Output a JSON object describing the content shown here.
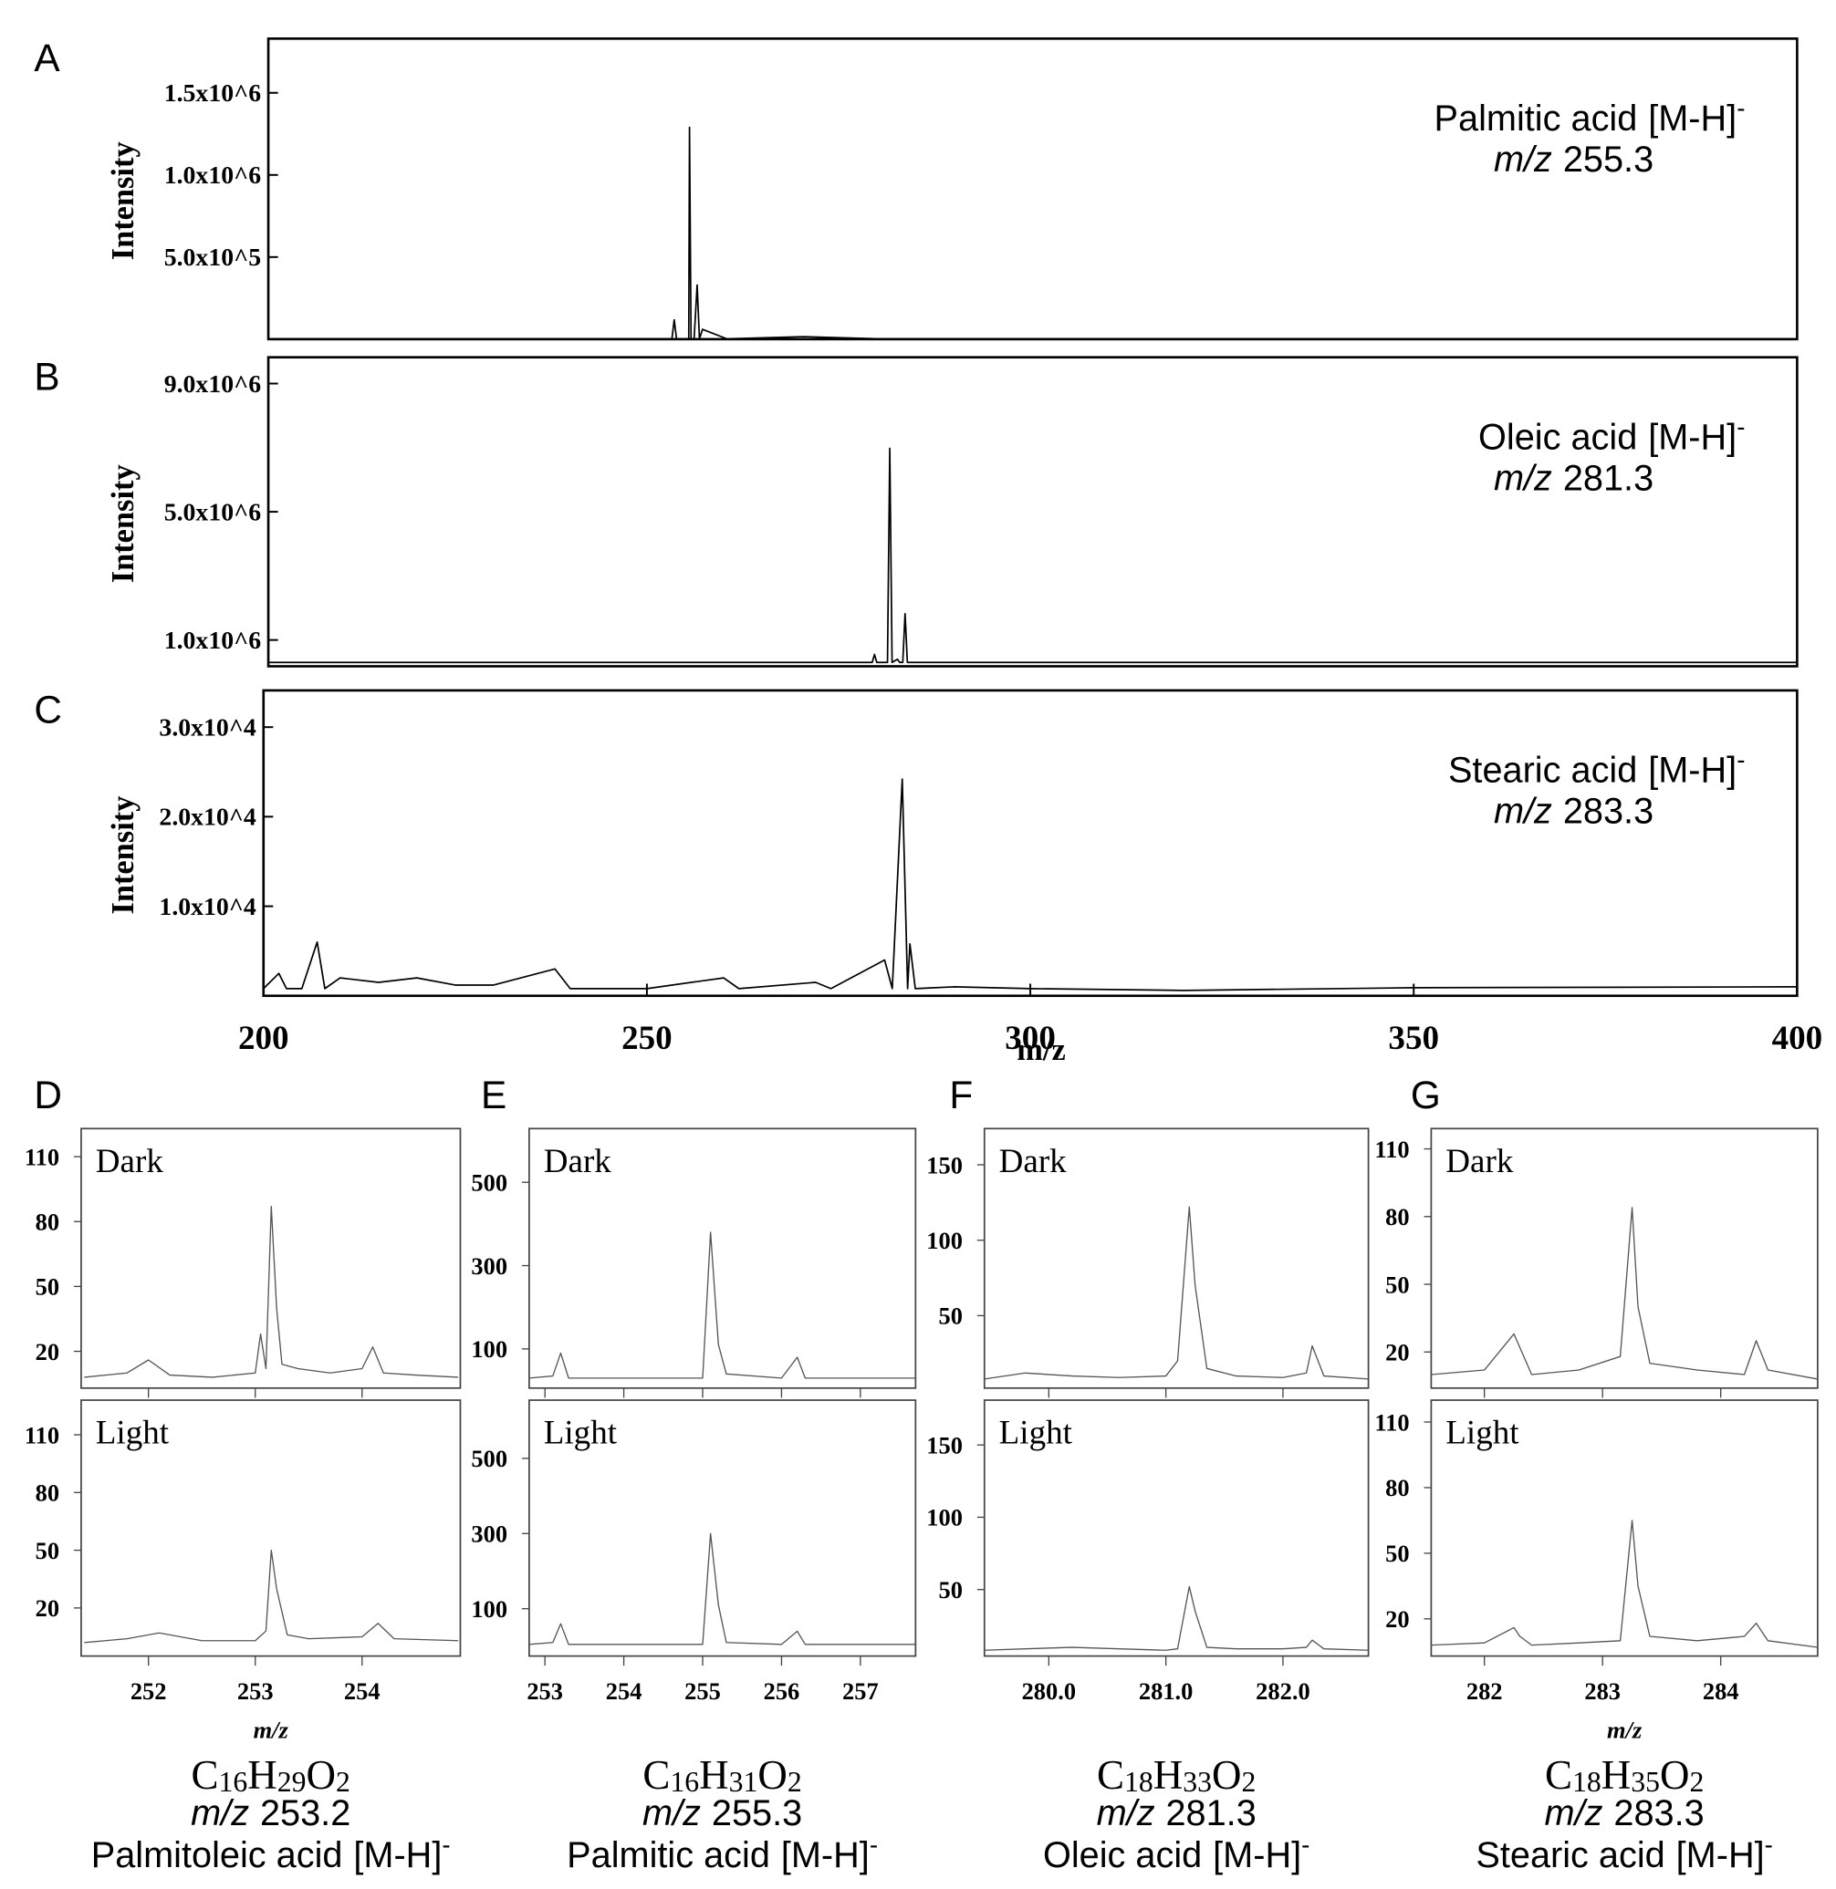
{
  "chart_data": [
    {
      "type": "line",
      "label": "A",
      "ylabel": "Intensity",
      "compound": "Palmitic acid",
      "ion": "[M-H]",
      "charge": "-",
      "mz_prefix": "m/z",
      "mz": "255.3",
      "xlim": [
        200,
        400
      ],
      "ylim": [
        0,
        1830000
      ],
      "yticks": [
        {
          "value": 500000,
          "label": "5.0x10^5"
        },
        {
          "value": 1000000,
          "label": "1.0x10^6"
        },
        {
          "value": 1500000,
          "label": "1.5x10^6"
        }
      ],
      "color": "#000000",
      "x": [
        200,
        230,
        250,
        252.8,
        253.1,
        253.4,
        254.8,
        255.0,
        255.1,
        255.3,
        255.7,
        256.1,
        256.4,
        256.8,
        260,
        270,
        280,
        300,
        400
      ],
      "values": [
        2000,
        2000,
        2000,
        2000,
        118000,
        2000,
        2000,
        2000,
        1290000,
        2000,
        2000,
        330000,
        2000,
        60000,
        2000,
        15000,
        2000,
        2000,
        2000
      ]
    },
    {
      "type": "line",
      "label": "B",
      "ylabel": "Intensity",
      "compound": "Oleic acid",
      "ion": "[M-H]",
      "charge": "-",
      "mz_prefix": "m/z",
      "mz": "281.3",
      "xlim": [
        200,
        400
      ],
      "ylim": [
        180000,
        9820000
      ],
      "yticks": [
        {
          "value": 1000000,
          "label": "1.0x10^6"
        },
        {
          "value": 5000000,
          "label": "5.0x10^6"
        },
        {
          "value": 9000000,
          "label": "9.0x10^6"
        }
      ],
      "color": "#000000",
      "x": [
        200,
        240,
        260,
        279.0,
        279.3,
        279.6,
        281.0,
        281.3,
        281.6,
        282.3,
        282.6,
        283.0,
        283.3,
        283.6,
        290,
        320,
        360,
        400
      ],
      "values": [
        300000,
        300000,
        300000,
        300000,
        550000,
        300000,
        300000,
        6980000,
        300000,
        400000,
        300000,
        300000,
        1820000,
        300000,
        300000,
        300000,
        300000,
        300000
      ]
    },
    {
      "type": "line",
      "label": "C",
      "ylabel": "Intensity",
      "compound": "Stearic acid",
      "ion": "[M-H]",
      "charge": "-",
      "mz_prefix": "m/z",
      "mz": "283.3",
      "xlim": [
        200,
        400
      ],
      "ylim": [
        0,
        34100
      ],
      "yticks": [
        {
          "value": 10000,
          "label": "1.0x10^4"
        },
        {
          "value": 20000,
          "label": "2.0x10^4"
        },
        {
          "value": 30000,
          "label": "3.0x10^4"
        }
      ],
      "xticks": [
        200,
        250,
        300,
        350,
        400
      ],
      "xlabel": "m/z",
      "color": "#000000",
      "x": [
        200,
        202,
        203,
        205,
        207,
        208,
        210,
        215,
        220,
        225,
        230,
        238,
        240,
        250,
        260,
        262,
        272,
        274,
        281,
        282,
        283.3,
        284,
        284.3,
        285,
        290,
        300,
        320,
        350,
        400
      ],
      "values": [
        800,
        2500,
        800,
        800,
        6000,
        800,
        2000,
        1500,
        2000,
        1200,
        1200,
        3000,
        800,
        800,
        2000,
        800,
        1500,
        800,
        4000,
        800,
        24200,
        800,
        5800,
        800,
        1000,
        800,
        600,
        900,
        1000
      ]
    },
    {
      "type": "line",
      "label": "D",
      "formula": [
        "C",
        "16",
        "H",
        "29",
        "O",
        "2"
      ],
      "mz_prefix": "m/z",
      "mz": "253.2",
      "compound": "Palmitoleic acid",
      "ion": "[M-H]",
      "charge": "-",
      "xlim": [
        251.37,
        254.92
      ],
      "xticks": [
        252,
        253,
        254
      ],
      "xlabel": "m/z",
      "color": "#555555",
      "panels": [
        {
          "title": "Dark",
          "ylim": [
            3,
            123
          ],
          "yticks": [
            20,
            50,
            80,
            110
          ],
          "x": [
            251.4,
            251.8,
            252.0,
            252.2,
            252.6,
            253.0,
            253.05,
            253.1,
            253.15,
            253.2,
            253.25,
            253.4,
            253.7,
            254.0,
            254.1,
            254.2,
            254.5,
            254.9
          ],
          "values": [
            8,
            10,
            16,
            9,
            8,
            10,
            28,
            12,
            87,
            40,
            14,
            12,
            10,
            12,
            22,
            10,
            9,
            8
          ]
        },
        {
          "title": "Light",
          "ylim": [
            -5,
            128
          ],
          "yticks": [
            20,
            50,
            80,
            110
          ],
          "x": [
            251.4,
            251.8,
            252.1,
            252.5,
            253.0,
            253.1,
            253.15,
            253.2,
            253.3,
            253.5,
            254.0,
            254.15,
            254.3,
            254.9
          ],
          "values": [
            2,
            4,
            7,
            3,
            3,
            8,
            50,
            30,
            6,
            4,
            5,
            12,
            4,
            3
          ]
        }
      ]
    },
    {
      "type": "line",
      "label": "E",
      "formula": [
        "C",
        "16",
        "H",
        "31",
        "O",
        "2"
      ],
      "mz_prefix": "m/z",
      "mz": "255.3",
      "compound": "Palmitic acid",
      "ion": "[M-H]",
      "charge": "-",
      "xlim": [
        252.8,
        257.7
      ],
      "xticks": [
        253,
        254,
        255,
        256,
        257
      ],
      "color": "#555555",
      "panels": [
        {
          "title": "Dark",
          "ylim": [
            6,
            629
          ],
          "yticks": [
            100,
            300,
            500
          ],
          "x": [
            252.8,
            253.1,
            253.2,
            253.3,
            254.0,
            255.0,
            255.1,
            255.2,
            255.3,
            256.0,
            256.2,
            256.3,
            257.0,
            257.7
          ],
          "values": [
            30,
            35,
            90,
            30,
            30,
            30,
            380,
            110,
            40,
            30,
            80,
            30,
            30,
            30
          ]
        },
        {
          "title": "Light",
          "ylim": [
            -26,
            655
          ],
          "yticks": [
            100,
            300,
            500
          ],
          "x": [
            252.8,
            253.1,
            253.2,
            253.3,
            254.0,
            255.0,
            255.1,
            255.2,
            255.3,
            256.0,
            256.2,
            256.3,
            257.0,
            257.7
          ],
          "values": [
            5,
            10,
            60,
            5,
            5,
            5,
            300,
            110,
            10,
            5,
            40,
            5,
            5,
            5
          ]
        }
      ]
    },
    {
      "type": "line",
      "label": "F",
      "formula": [
        "C",
        "18",
        "H",
        "33",
        "O",
        "2"
      ],
      "mz_prefix": "m/z",
      "mz": "281.3",
      "compound": "Oleic acid",
      "ion": "[M-H]",
      "charge": "-",
      "xlim": [
        279.45,
        282.73
      ],
      "xticks": [
        {
          "value": 280,
          "label": "280.0"
        },
        {
          "value": 281,
          "label": "281.0"
        },
        {
          "value": 282,
          "label": "282.0"
        }
      ],
      "color": "#555555",
      "panels": [
        {
          "title": "Dark",
          "ylim": [
            2,
            174
          ],
          "yticks": [
            50,
            100,
            150
          ],
          "x": [
            279.45,
            279.8,
            280.2,
            280.6,
            281.0,
            281.1,
            281.2,
            281.25,
            281.35,
            281.6,
            282.0,
            282.2,
            282.25,
            282.35,
            282.73
          ],
          "values": [
            8,
            12,
            10,
            9,
            10,
            20,
            122,
            70,
            15,
            10,
            9,
            12,
            30,
            10,
            8
          ]
        },
        {
          "title": "Light",
          "ylim": [
            4,
            181
          ],
          "yticks": [
            50,
            100,
            150
          ],
          "x": [
            279.45,
            279.8,
            280.2,
            280.6,
            281.0,
            281.1,
            281.2,
            281.25,
            281.35,
            281.6,
            282.0,
            282.2,
            282.25,
            282.35,
            282.73
          ],
          "values": [
            8,
            9,
            10,
            9,
            8,
            9,
            52,
            35,
            10,
            9,
            9,
            10,
            15,
            9,
            8
          ]
        }
      ]
    },
    {
      "type": "line",
      "label": "G",
      "formula": [
        "C",
        "18",
        "H",
        "35",
        "O",
        "2"
      ],
      "mz_prefix": "m/z",
      "mz": "283.3",
      "compound": "Stearic acid",
      "ion": "[M-H]",
      "charge": "-",
      "xlim": [
        281.55,
        284.82
      ],
      "xticks": [
        282,
        283,
        284
      ],
      "xlabel": "m/z",
      "color": "#555555",
      "panels": [
        {
          "title": "Dark",
          "ylim": [
            4,
            119
          ],
          "yticks": [
            20,
            50,
            80,
            110
          ],
          "x": [
            281.55,
            282.0,
            282.25,
            282.3,
            282.4,
            282.8,
            283.15,
            283.25,
            283.3,
            283.4,
            283.8,
            284.2,
            284.3,
            284.4,
            284.82
          ],
          "values": [
            10,
            12,
            28,
            22,
            10,
            12,
            18,
            84,
            40,
            15,
            12,
            10,
            25,
            12,
            8
          ]
        },
        {
          "title": "Light",
          "ylim": [
            3,
            120
          ],
          "yticks": [
            20,
            50,
            80,
            110
          ],
          "x": [
            281.55,
            282.0,
            282.25,
            282.3,
            282.4,
            282.8,
            283.15,
            283.25,
            283.3,
            283.4,
            283.8,
            284.2,
            284.3,
            284.4,
            284.82
          ],
          "values": [
            8,
            9,
            16,
            12,
            8,
            9,
            10,
            65,
            35,
            12,
            10,
            12,
            18,
            10,
            7
          ]
        }
      ]
    }
  ]
}
